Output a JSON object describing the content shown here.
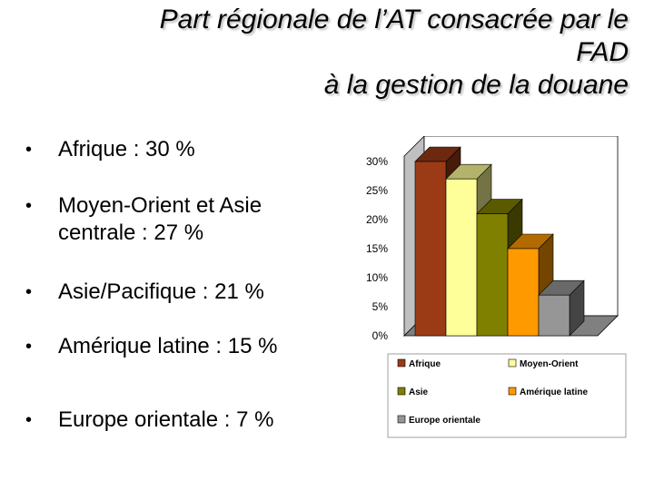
{
  "slide": {
    "title_lines": [
      "Part régionale de l’AT consacrée par le",
      "FAD",
      "à la gestion de la douane"
    ],
    "bullets": [
      "Afrique : 30 %",
      "Moyen-Orient et Asie centrale : 27 %",
      "Asie/Pacifique : 21 %",
      "Amérique latine : 15 %",
      "Europe orientale : 7 %"
    ]
  },
  "chart_data": {
    "type": "bar",
    "title": "",
    "xlabel": "",
    "ylabel": "",
    "ylim": [
      0,
      30
    ],
    "yticks": [
      "0%",
      "5%",
      "10%",
      "15%",
      "20%",
      "25%",
      "30%"
    ],
    "ytick_values": [
      0,
      5,
      10,
      15,
      20,
      25,
      30
    ],
    "three_d": true,
    "grid": false,
    "legend_position": "bottom",
    "series": [
      {
        "name": "Afrique",
        "value": 30,
        "color": "#9b3b16"
      },
      {
        "name": "Moyen-Orient",
        "value": 27,
        "color": "#ffff99"
      },
      {
        "name": "Asie",
        "value": 21,
        "color": "#808000"
      },
      {
        "name": "Amérique latine",
        "value": 15,
        "color": "#ff9900"
      },
      {
        "name": "Europe orientale",
        "value": 7,
        "color": "#969696"
      }
    ]
  }
}
